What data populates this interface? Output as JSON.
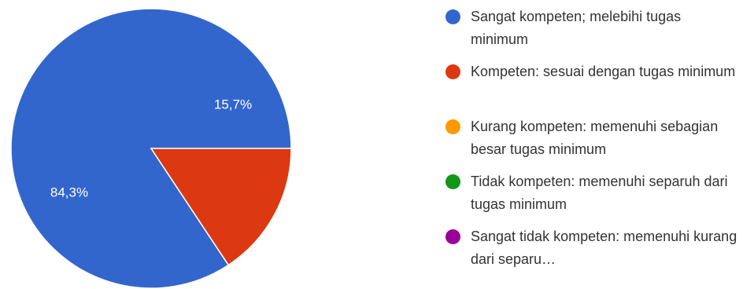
{
  "chart_data": {
    "type": "pie",
    "categories": [
      "Sangat kompeten; melebihi tugas minimum",
      "Kompeten: sesuai dengan tugas minimum",
      "Kurang kompeten: memenuhi sebagian besar tugas minimum",
      "Tidak kompeten: memenuhi separuh dari tugas minimum",
      "Sangat tidak kompeten: memenuhi kurang dari separu…"
    ],
    "values": [
      84.3,
      15.7,
      0,
      0,
      0
    ],
    "value_labels": [
      "84,3%",
      "15,7%",
      "",
      "",
      ""
    ],
    "colors": [
      "#3366cc",
      "#dc3912",
      "#ff9900",
      "#109618",
      "#990099"
    ],
    "legend_position": "right"
  }
}
